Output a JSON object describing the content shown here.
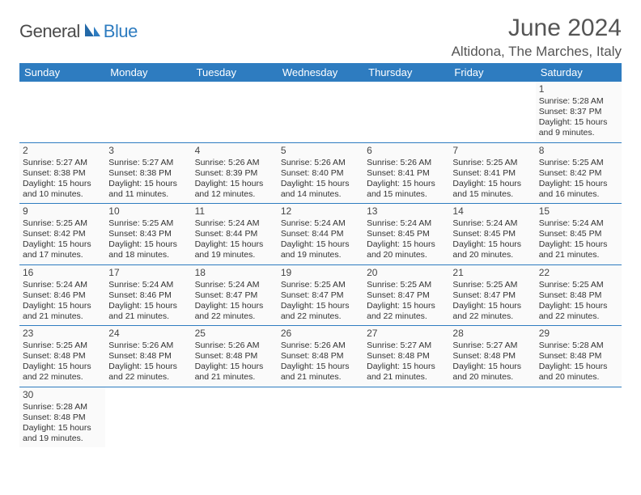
{
  "logo": {
    "main": "General",
    "accent": "Blue"
  },
  "title": "June 2024",
  "location": "Altidona, The Marches, Italy",
  "colors": {
    "header_bg": "#2e7cc0",
    "header_text": "#ffffff",
    "border": "#2e7cc0",
    "page_bg": "#ffffff",
    "cell_bg": "#fafafa",
    "text": "#333333",
    "title_color": "#555555"
  },
  "typography": {
    "title_fontsize": 30,
    "location_fontsize": 17,
    "dayheader_fontsize": 13,
    "cell_fontsize": 10.5,
    "daynum_fontsize": 12
  },
  "day_names": [
    "Sunday",
    "Monday",
    "Tuesday",
    "Wednesday",
    "Thursday",
    "Friday",
    "Saturday"
  ],
  "weeks": [
    [
      null,
      null,
      null,
      null,
      null,
      null,
      {
        "n": "1",
        "sunrise": "5:28 AM",
        "sunset": "8:37 PM",
        "dl_h": "15",
        "dl_m": "9"
      }
    ],
    [
      {
        "n": "2",
        "sunrise": "5:27 AM",
        "sunset": "8:38 PM",
        "dl_h": "15",
        "dl_m": "10"
      },
      {
        "n": "3",
        "sunrise": "5:27 AM",
        "sunset": "8:38 PM",
        "dl_h": "15",
        "dl_m": "11"
      },
      {
        "n": "4",
        "sunrise": "5:26 AM",
        "sunset": "8:39 PM",
        "dl_h": "15",
        "dl_m": "12"
      },
      {
        "n": "5",
        "sunrise": "5:26 AM",
        "sunset": "8:40 PM",
        "dl_h": "15",
        "dl_m": "14"
      },
      {
        "n": "6",
        "sunrise": "5:26 AM",
        "sunset": "8:41 PM",
        "dl_h": "15",
        "dl_m": "15"
      },
      {
        "n": "7",
        "sunrise": "5:25 AM",
        "sunset": "8:41 PM",
        "dl_h": "15",
        "dl_m": "15"
      },
      {
        "n": "8",
        "sunrise": "5:25 AM",
        "sunset": "8:42 PM",
        "dl_h": "15",
        "dl_m": "16"
      }
    ],
    [
      {
        "n": "9",
        "sunrise": "5:25 AM",
        "sunset": "8:42 PM",
        "dl_h": "15",
        "dl_m": "17"
      },
      {
        "n": "10",
        "sunrise": "5:25 AM",
        "sunset": "8:43 PM",
        "dl_h": "15",
        "dl_m": "18"
      },
      {
        "n": "11",
        "sunrise": "5:24 AM",
        "sunset": "8:44 PM",
        "dl_h": "15",
        "dl_m": "19"
      },
      {
        "n": "12",
        "sunrise": "5:24 AM",
        "sunset": "8:44 PM",
        "dl_h": "15",
        "dl_m": "19"
      },
      {
        "n": "13",
        "sunrise": "5:24 AM",
        "sunset": "8:45 PM",
        "dl_h": "15",
        "dl_m": "20"
      },
      {
        "n": "14",
        "sunrise": "5:24 AM",
        "sunset": "8:45 PM",
        "dl_h": "15",
        "dl_m": "20"
      },
      {
        "n": "15",
        "sunrise": "5:24 AM",
        "sunset": "8:45 PM",
        "dl_h": "15",
        "dl_m": "21"
      }
    ],
    [
      {
        "n": "16",
        "sunrise": "5:24 AM",
        "sunset": "8:46 PM",
        "dl_h": "15",
        "dl_m": "21"
      },
      {
        "n": "17",
        "sunrise": "5:24 AM",
        "sunset": "8:46 PM",
        "dl_h": "15",
        "dl_m": "21"
      },
      {
        "n": "18",
        "sunrise": "5:24 AM",
        "sunset": "8:47 PM",
        "dl_h": "15",
        "dl_m": "22"
      },
      {
        "n": "19",
        "sunrise": "5:25 AM",
        "sunset": "8:47 PM",
        "dl_h": "15",
        "dl_m": "22"
      },
      {
        "n": "20",
        "sunrise": "5:25 AM",
        "sunset": "8:47 PM",
        "dl_h": "15",
        "dl_m": "22"
      },
      {
        "n": "21",
        "sunrise": "5:25 AM",
        "sunset": "8:47 PM",
        "dl_h": "15",
        "dl_m": "22"
      },
      {
        "n": "22",
        "sunrise": "5:25 AM",
        "sunset": "8:48 PM",
        "dl_h": "15",
        "dl_m": "22"
      }
    ],
    [
      {
        "n": "23",
        "sunrise": "5:25 AM",
        "sunset": "8:48 PM",
        "dl_h": "15",
        "dl_m": "22"
      },
      {
        "n": "24",
        "sunrise": "5:26 AM",
        "sunset": "8:48 PM",
        "dl_h": "15",
        "dl_m": "22"
      },
      {
        "n": "25",
        "sunrise": "5:26 AM",
        "sunset": "8:48 PM",
        "dl_h": "15",
        "dl_m": "21"
      },
      {
        "n": "26",
        "sunrise": "5:26 AM",
        "sunset": "8:48 PM",
        "dl_h": "15",
        "dl_m": "21"
      },
      {
        "n": "27",
        "sunrise": "5:27 AM",
        "sunset": "8:48 PM",
        "dl_h": "15",
        "dl_m": "21"
      },
      {
        "n": "28",
        "sunrise": "5:27 AM",
        "sunset": "8:48 PM",
        "dl_h": "15",
        "dl_m": "20"
      },
      {
        "n": "29",
        "sunrise": "5:28 AM",
        "sunset": "8:48 PM",
        "dl_h": "15",
        "dl_m": "20"
      }
    ],
    [
      {
        "n": "30",
        "sunrise": "5:28 AM",
        "sunset": "8:48 PM",
        "dl_h": "15",
        "dl_m": "19"
      },
      null,
      null,
      null,
      null,
      null,
      null
    ]
  ],
  "labels": {
    "sunrise": "Sunrise:",
    "sunset": "Sunset:",
    "daylight_prefix": "Daylight:",
    "hours_word": "hours",
    "and_word": "and",
    "minutes_word": "minutes."
  }
}
